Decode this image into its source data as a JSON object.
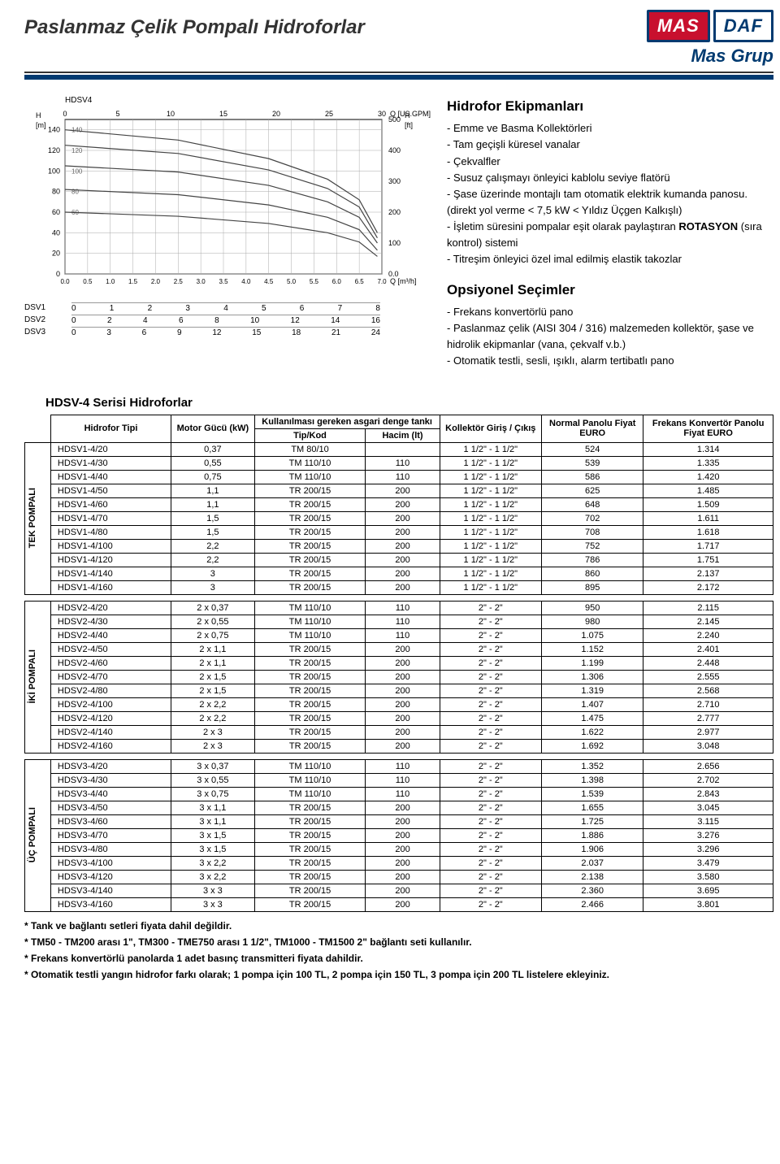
{
  "header": {
    "title": "Paslanmaz Çelik Pompalı Hidroforlar",
    "logo_mas": "MAS",
    "logo_daf": "DAF",
    "brand_sub": "Mas Grup"
  },
  "chart": {
    "label": "HDSV4",
    "y_left_label": "H [m]",
    "y_right_label": "H [ft]",
    "x_top_label": "Q [US.GPM]",
    "x_bottom_label": "Q [m³/h]",
    "x_top_ticks": [
      0,
      5,
      10,
      15,
      20,
      25,
      30
    ],
    "y_left_ticks": [
      0,
      20,
      40,
      60,
      80,
      100,
      120,
      140
    ],
    "y_right_ticks": [
      "0.0",
      100,
      200,
      300,
      400,
      500
    ],
    "x_bottom_ticks": [
      "0.0",
      "0.5",
      "1.0",
      "1.5",
      "2.0",
      "2.5",
      "3.0",
      "3.5",
      "4.0",
      "4.5",
      "5.0",
      "5.5",
      "6.0",
      "6.5",
      "7.0"
    ],
    "inset_labels": [
      140,
      120,
      100,
      80,
      60
    ],
    "curves": [
      {
        "name": "c1",
        "pts": [
          [
            0,
            140
          ],
          [
            2.5,
            130
          ],
          [
            4.5,
            112
          ],
          [
            5.8,
            92
          ],
          [
            6.5,
            72
          ],
          [
            6.9,
            40
          ]
        ]
      },
      {
        "name": "c2",
        "pts": [
          [
            0,
            125
          ],
          [
            2.5,
            117
          ],
          [
            4.5,
            101
          ],
          [
            5.8,
            83
          ],
          [
            6.5,
            65
          ],
          [
            6.9,
            35
          ]
        ]
      },
      {
        "name": "c3",
        "pts": [
          [
            0,
            105
          ],
          [
            2.5,
            99
          ],
          [
            4.5,
            86
          ],
          [
            5.8,
            70
          ],
          [
            6.5,
            55
          ],
          [
            6.9,
            30
          ]
        ]
      },
      {
        "name": "c4",
        "pts": [
          [
            0,
            82
          ],
          [
            2.5,
            77
          ],
          [
            4.5,
            67
          ],
          [
            5.8,
            55
          ],
          [
            6.5,
            43
          ],
          [
            6.9,
            23
          ]
        ]
      },
      {
        "name": "c5",
        "pts": [
          [
            0,
            60
          ],
          [
            2.5,
            56
          ],
          [
            4.5,
            49
          ],
          [
            5.8,
            40
          ],
          [
            6.5,
            31
          ],
          [
            6.9,
            17
          ]
        ]
      }
    ],
    "xlim": [
      0,
      7.0
    ],
    "ylim": [
      0,
      150
    ],
    "grid_color": "#aaaaaa",
    "line_color": "#444444",
    "line_width": 1.2,
    "background_color": "#ffffff"
  },
  "dsv_scales": [
    {
      "label": "DSV1",
      "ticks": [
        0,
        1,
        2,
        3,
        4,
        5,
        6,
        7,
        8
      ]
    },
    {
      "label": "DSV2",
      "ticks": [
        0,
        2,
        4,
        6,
        8,
        10,
        12,
        14,
        16
      ]
    },
    {
      "label": "DSV3",
      "ticks": [
        0,
        3,
        6,
        9,
        12,
        15,
        18,
        21,
        24
      ]
    }
  ],
  "equip": {
    "h1": "Hidrofor Ekipmanları",
    "items": [
      "Emme ve Basma Kollektörleri",
      "Tam geçişli küresel vanalar",
      "Çekvalfler",
      "Susuz çalışmayı önleyici kablolu seviye flatörü",
      "Şase üzerinde montajlı tam otomatik elektrik kumanda panosu. (direkt yol verme < 7,5 kW < Yıldız Üçgen Kalkışlı)",
      "İşletim süresini pompalar eşit olarak paylaştıran ROTASYON (sıra kontrol) sistemi",
      "Titreşim önleyici özel imal edilmiş elastik takozlar"
    ],
    "h2": "Opsiyonel Seçimler",
    "opts": [
      "Frekans konvertörlü pano",
      "Paslanmaz çelik (AISI 304 / 316) malzemeden kollektör, şase ve hidrolik ekipmanlar (vana, çekvalf v.b.)",
      "Otomatik testli, sesli, ışıklı, alarm tertibatlı pano"
    ]
  },
  "table": {
    "section_title": "HDSV-4 Serisi Hidroforlar",
    "head": {
      "type": "Hidrofor Tipi",
      "motor": "Motor Gücü (kW)",
      "tank_group": "Kullanılması gereken asgari denge tankı",
      "tank_code": "Tip/Kod",
      "tank_vol": "Hacim (lt)",
      "collector": "Kollektör Giriş / Çıkış",
      "price1": "Normal Panolu Fiyat EURO",
      "price2": "Frekans Konvertör Panolu Fiyat EURO"
    },
    "groups": [
      {
        "label": "TEK POMPALI",
        "rows": [
          [
            "HDSV1-4/20",
            "0,37",
            "TM 80/10",
            "",
            "1 1/2\" - 1 1/2\"",
            "524",
            "1.314"
          ],
          [
            "HDSV1-4/30",
            "0,55",
            "TM 110/10",
            "110",
            "1 1/2\" - 1 1/2\"",
            "539",
            "1.335"
          ],
          [
            "HDSV1-4/40",
            "0,75",
            "TM 110/10",
            "110",
            "1 1/2\" - 1 1/2\"",
            "586",
            "1.420"
          ],
          [
            "HDSV1-4/50",
            "1,1",
            "TR 200/15",
            "200",
            "1 1/2\" - 1 1/2\"",
            "625",
            "1.485"
          ],
          [
            "HDSV1-4/60",
            "1,1",
            "TR 200/15",
            "200",
            "1 1/2\" - 1 1/2\"",
            "648",
            "1.509"
          ],
          [
            "HDSV1-4/70",
            "1,5",
            "TR 200/15",
            "200",
            "1 1/2\" - 1 1/2\"",
            "702",
            "1.611"
          ],
          [
            "HDSV1-4/80",
            "1,5",
            "TR 200/15",
            "200",
            "1 1/2\" - 1 1/2\"",
            "708",
            "1.618"
          ],
          [
            "HDSV1-4/100",
            "2,2",
            "TR 200/15",
            "200",
            "1 1/2\" - 1 1/2\"",
            "752",
            "1.717"
          ],
          [
            "HDSV1-4/120",
            "2,2",
            "TR 200/15",
            "200",
            "1 1/2\" - 1 1/2\"",
            "786",
            "1.751"
          ],
          [
            "HDSV1-4/140",
            "3",
            "TR 200/15",
            "200",
            "1 1/2\" - 1 1/2\"",
            "860",
            "2.137"
          ],
          [
            "HDSV1-4/160",
            "3",
            "TR 200/15",
            "200",
            "1 1/2\" - 1 1/2\"",
            "895",
            "2.172"
          ]
        ]
      },
      {
        "label": "İKİ POMPALI",
        "rows": [
          [
            "HDSV2-4/20",
            "2 x 0,37",
            "TM 110/10",
            "110",
            "2\" - 2\"",
            "950",
            "2.115"
          ],
          [
            "HDSV2-4/30",
            "2 x 0,55",
            "TM 110/10",
            "110",
            "2\" - 2\"",
            "980",
            "2.145"
          ],
          [
            "HDSV2-4/40",
            "2 x 0,75",
            "TM 110/10",
            "110",
            "2\" - 2\"",
            "1.075",
            "2.240"
          ],
          [
            "HDSV2-4/50",
            "2 x 1,1",
            "TR 200/15",
            "200",
            "2\" - 2\"",
            "1.152",
            "2.401"
          ],
          [
            "HDSV2-4/60",
            "2 x 1,1",
            "TR 200/15",
            "200",
            "2\" - 2\"",
            "1.199",
            "2.448"
          ],
          [
            "HDSV2-4/70",
            "2 x 1,5",
            "TR 200/15",
            "200",
            "2\" - 2\"",
            "1.306",
            "2.555"
          ],
          [
            "HDSV2-4/80",
            "2 x 1,5",
            "TR 200/15",
            "200",
            "2\" - 2\"",
            "1.319",
            "2.568"
          ],
          [
            "HDSV2-4/100",
            "2 x 2,2",
            "TR 200/15",
            "200",
            "2\" - 2\"",
            "1.407",
            "2.710"
          ],
          [
            "HDSV2-4/120",
            "2 x 2,2",
            "TR 200/15",
            "200",
            "2\" - 2\"",
            "1.475",
            "2.777"
          ],
          [
            "HDSV2-4/140",
            "2 x 3",
            "TR 200/15",
            "200",
            "2\" - 2\"",
            "1.622",
            "2.977"
          ],
          [
            "HDSV2-4/160",
            "2 x 3",
            "TR 200/15",
            "200",
            "2\" - 2\"",
            "1.692",
            "3.048"
          ]
        ]
      },
      {
        "label": "ÜÇ POMPALI",
        "rows": [
          [
            "HDSV3-4/20",
            "3 x 0,37",
            "TM 110/10",
            "110",
            "2\" - 2\"",
            "1.352",
            "2.656"
          ],
          [
            "HDSV3-4/30",
            "3 x 0,55",
            "TM 110/10",
            "110",
            "2\" - 2\"",
            "1.398",
            "2.702"
          ],
          [
            "HDSV3-4/40",
            "3 x 0,75",
            "TM 110/10",
            "110",
            "2\" - 2\"",
            "1.539",
            "2.843"
          ],
          [
            "HDSV3-4/50",
            "3 x 1,1",
            "TR 200/15",
            "200",
            "2\" - 2\"",
            "1.655",
            "3.045"
          ],
          [
            "HDSV3-4/60",
            "3 x 1,1",
            "TR 200/15",
            "200",
            "2\" - 2\"",
            "1.725",
            "3.115"
          ],
          [
            "HDSV3-4/70",
            "3 x 1,5",
            "TR 200/15",
            "200",
            "2\" - 2\"",
            "1.886",
            "3.276"
          ],
          [
            "HDSV3-4/80",
            "3 x 1,5",
            "TR 200/15",
            "200",
            "2\" - 2\"",
            "1.906",
            "3.296"
          ],
          [
            "HDSV3-4/100",
            "3 x 2,2",
            "TR 200/15",
            "200",
            "2\" - 2\"",
            "2.037",
            "3.479"
          ],
          [
            "HDSV3-4/120",
            "3 x 2,2",
            "TR 200/15",
            "200",
            "2\" - 2\"",
            "2.138",
            "3.580"
          ],
          [
            "HDSV3-4/140",
            "3 x 3",
            "TR 200/15",
            "200",
            "2\" - 2\"",
            "2.360",
            "3.695"
          ],
          [
            "HDSV3-4/160",
            "3 x 3",
            "TR 200/15",
            "200",
            "2\" - 2\"",
            "2.466",
            "3.801"
          ]
        ]
      }
    ]
  },
  "notes": [
    "* Tank ve bağlantı setleri fiyata dahil değildir.",
    "* TM50 - TM200 arası 1\",  TM300 - TME750 arası 1 1/2\", TM1000 - TM1500 2\" bağlantı seti kullanılır.",
    "* Frekans konvertörlü panolarda 1 adet basınç transmitteri fiyata dahildir.",
    "* Otomatik testli yangın hidrofor farkı olarak; 1 pompa için 100 TL, 2 pompa için 150 TL, 3 pompa için 200 TL listelere ekleyiniz."
  ]
}
